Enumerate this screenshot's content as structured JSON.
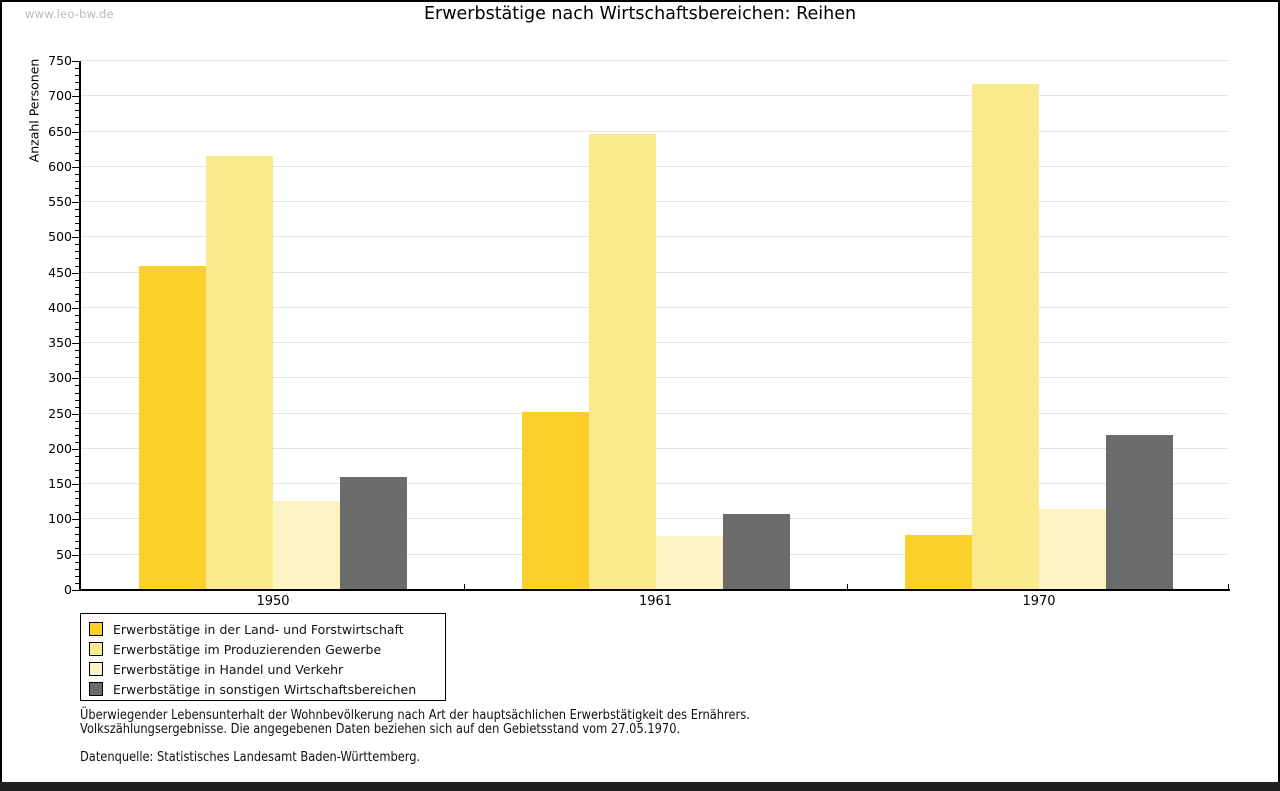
{
  "watermark": "www.leo-bw.de",
  "title": "Erwerbstätige nach Wirtschaftsbereichen: Reihen",
  "chart_data": {
    "type": "bar",
    "title": "Erwerbstätige nach Wirtschaftsbereichen: Reihen",
    "ylabel": "Anzahl Personen",
    "ylim": [
      0,
      750
    ],
    "y_major_step": 50,
    "y_minor_step": 10,
    "grid": true,
    "legend_position": "bottom-left",
    "categories": [
      "1950",
      "1961",
      "1970"
    ],
    "series": [
      {
        "name": "Erwerbstätige in der Land- und Forstwirtschaft",
        "color": "#fcd02c",
        "values": [
          460,
          253,
          78
        ]
      },
      {
        "name": "Erwerbstätige im Produzierenden Gewerbe",
        "color": "#fbe98e",
        "values": [
          615,
          646,
          717
        ]
      },
      {
        "name": "Erwerbstätige in Handel und Verkehr",
        "color": "#fcf4c5",
        "values": [
          126,
          77,
          115
        ]
      },
      {
        "name": "Erwerbstätige in sonstigen Wirtschaftsbereichen",
        "color": "#6b6b6b",
        "values": [
          160,
          108,
          220
        ]
      }
    ]
  },
  "footer": {
    "line1": "Überwiegender Lebensunterhalt der Wohnbevölkerung nach Art der hauptsächlichen Erwerbstätigkeit des Ernährers.",
    "line2": "Volkszählungsergebnisse. Die angegebenen Daten beziehen sich auf den Gebietsstand vom 27.05.1970.",
    "source": "Datenquelle: Statistisches Landesamt Baden-Württemberg."
  }
}
